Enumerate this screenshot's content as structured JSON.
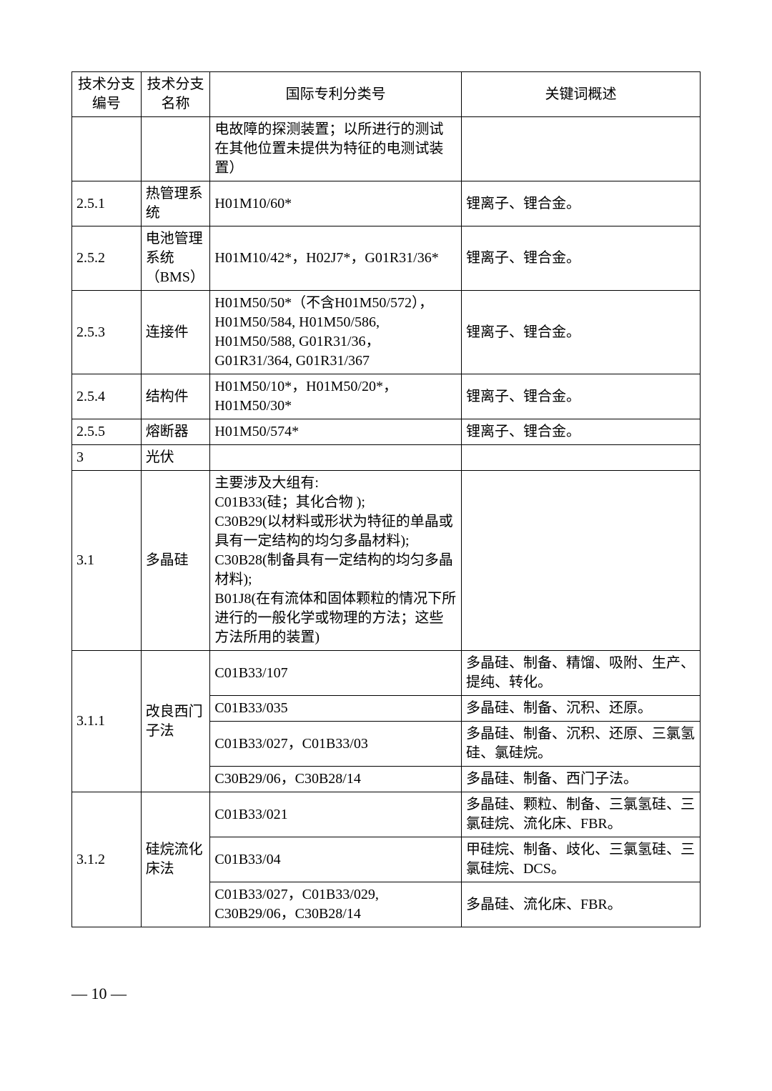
{
  "table": {
    "headers": {
      "col1": "技术分支编号",
      "col2": "技术分支名称",
      "col3": "国际专利分类号",
      "col4": "关键词概述"
    },
    "rows": {
      "r0": {
        "ipc": "电故障的探测装置；以所进行的测试在其他位置未提供为特征的电测试装置）"
      },
      "r1": {
        "id": "2.5.1",
        "name": "热管理系统",
        "ipc": "H01M10/60*",
        "keywords": "锂离子、锂合金。"
      },
      "r2": {
        "id": "2.5.2",
        "name": "电池管理系统（BMS）",
        "ipc": "H01M10/42*，H02J7*，G01R31/36*",
        "keywords": "锂离子、锂合金。"
      },
      "r3": {
        "id": "2.5.3",
        "name": "连接件",
        "ipc": "H01M50/50*（不含H01M50/572），H01M50/584, H01M50/586, H01M50/588, G01R31/36，G01R31/364, G01R31/367",
        "keywords": "锂离子、锂合金。"
      },
      "r4": {
        "id": "2.5.4",
        "name": "结构件",
        "ipc": "H01M50/10*，H01M50/20*，H01M50/30*",
        "keywords": "锂离子、锂合金。"
      },
      "r5": {
        "id": "2.5.5",
        "name": "熔断器",
        "ipc": "H01M50/574*",
        "keywords": "锂离子、锂合金。"
      },
      "r6": {
        "id": "3",
        "name": "光伏"
      },
      "r7": {
        "id": "3.1",
        "name": "多晶硅",
        "ipc": "主要涉及大组有:\nC01B33(硅；其化合物 );\nC30B29(以材料或形状为特征的单晶或具有一定结构的均匀多晶材料);\nC30B28(制备具有一定结构的均匀多晶材料);\nB01J8(在有流体和固体颗粒的情况下所进行的一般化学或物理的方法；这些方法所用的装置)"
      },
      "r8": {
        "id": "3.1.1",
        "name": "改良西门子法",
        "ipc_a": "C01B33/107",
        "keywords_a": "多晶硅、制备、精馏、吸附、生产、提纯、转化。",
        "ipc_b": "C01B33/035",
        "keywords_b": "多晶硅、制备、沉积、还原。",
        "ipc_c": "C01B33/027，C01B33/03",
        "keywords_c": "多晶硅、制备、沉积、还原、三氯氢硅、氯硅烷。",
        "ipc_d": "C30B29/06，C30B28/14",
        "keywords_d": "多晶硅、制备、西门子法。"
      },
      "r9": {
        "id": "3.1.2",
        "name": "硅烷流化床法",
        "ipc_a": "C01B33/021",
        "keywords_a": "多晶硅、颗粒、制备、三氯氢硅、三氯硅烷、流化床、FBR。",
        "ipc_b": "C01B33/04",
        "keywords_b": "甲硅烷、制备、歧化、三氯氢硅、三氯硅烷、DCS。",
        "ipc_c": "C01B33/027，C01B33/029, C30B29/06，C30B28/14",
        "keywords_c": "多晶硅、流化床、FBR。"
      }
    }
  },
  "page_number": "— 10 —"
}
